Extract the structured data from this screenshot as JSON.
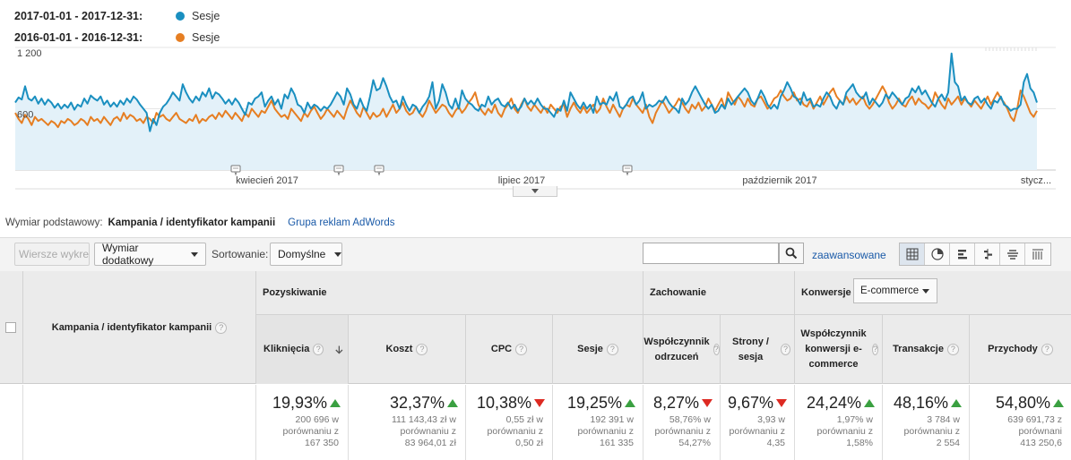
{
  "legend": [
    {
      "range": "2017-01-01 - 2017-12-31:",
      "name": "Sesje",
      "color": "#1a8fc0"
    },
    {
      "range": "2016-01-01 - 2016-12-31:",
      "name": "Sesje",
      "color": "#e67e22"
    }
  ],
  "chart_data": {
    "type": "line",
    "y_ticks": [
      "1 200",
      "600"
    ],
    "ylim": [
      0,
      1200
    ],
    "x_labels": [
      "kwiecień 2017",
      "lipiec 2017",
      "październik 2017",
      "stycz..."
    ],
    "grid": true,
    "legend_position": "top-left",
    "series": [
      {
        "name": "Sesje",
        "color": "#1a8fc0",
        "fill": "#e3f1f9",
        "values": [
          660,
          710,
          690,
          820,
          700,
          680,
          720,
          650,
          700,
          640,
          690,
          660,
          610,
          650,
          600,
          640,
          610,
          660,
          590,
          640,
          620,
          700,
          650,
          730,
          700,
          680,
          720,
          640,
          680,
          620,
          660,
          620,
          680,
          640,
          700,
          660,
          720,
          690,
          640,
          600,
          560,
          380,
          500,
          440,
          560,
          620,
          650,
          700,
          760,
          720,
          680,
          840,
          760,
          700,
          660,
          720,
          680,
          760,
          720,
          800,
          700,
          760,
          740,
          700,
          650,
          690,
          640,
          700,
          660,
          600,
          540,
          660,
          640,
          700,
          720,
          760,
          620,
          680,
          720,
          640,
          690,
          600,
          740,
          700,
          800,
          740,
          640,
          620,
          560,
          660,
          600,
          640,
          620,
          580,
          620,
          600,
          640,
          700,
          760,
          720,
          640,
          800,
          740,
          640,
          600,
          700,
          620,
          580,
          720,
          880,
          780,
          800,
          900,
          820,
          720,
          660,
          680,
          600,
          720,
          640,
          580,
          640,
          620,
          560,
          620,
          660,
          720,
          860,
          600,
          680,
          840,
          760,
          640,
          600,
          700,
          600,
          780,
          700,
          660,
          640,
          600,
          580,
          640,
          620,
          720,
          640,
          680,
          700,
          640,
          620,
          660,
          600,
          640,
          580,
          620,
          700,
          640,
          680,
          640,
          700,
          640,
          600,
          600,
          560,
          520,
          600,
          580,
          680,
          580,
          760,
          700,
          640,
          600,
          660,
          600,
          640,
          560,
          720,
          640,
          660,
          640,
          720,
          680,
          760,
          620,
          600,
          640,
          700,
          720,
          640,
          680,
          760,
          600,
          640,
          620,
          640,
          680,
          660,
          720,
          660,
          620,
          600,
          560,
          700,
          640,
          680,
          760,
          820,
          760,
          700,
          640,
          600,
          640,
          560,
          580,
          640,
          600,
          700,
          640,
          680,
          720,
          760,
          800,
          760,
          680,
          640,
          700,
          780,
          720,
          640,
          600,
          640,
          600,
          720,
          780,
          860,
          800,
          720,
          700,
          640,
          760,
          680,
          700,
          620,
          640,
          620,
          700,
          760,
          720,
          640,
          600,
          680,
          640,
          760,
          800,
          840,
          760,
          720,
          700,
          760,
          640,
          700,
          660,
          620,
          660,
          740,
          700,
          760,
          720,
          680,
          640,
          700,
          720,
          800,
          760,
          820,
          740,
          780,
          720,
          660,
          620,
          700,
          740,
          680,
          760,
          1140,
          860,
          820,
          680,
          720,
          660,
          640,
          700,
          720,
          660,
          700,
          640,
          600,
          680,
          660,
          720,
          640,
          620,
          580,
          600,
          600,
          640,
          860,
          940,
          800,
          760,
          660
        ]
      },
      {
        "name": "Sesje",
        "color": "#e67e22",
        "values": [
          560,
          500,
          460,
          540,
          500,
          440,
          520,
          480,
          500,
          470,
          440,
          480,
          460,
          420,
          480,
          460,
          500,
          480,
          440,
          460,
          500,
          480,
          440,
          520,
          480,
          500,
          460,
          520,
          480,
          440,
          500,
          520,
          480,
          560,
          500,
          540,
          520,
          480,
          500,
          460,
          520,
          500,
          460,
          560,
          520,
          540,
          500,
          480,
          520,
          560,
          500,
          480,
          460,
          500,
          480,
          540,
          460,
          500,
          480,
          520,
          540,
          500,
          560,
          520,
          580,
          540,
          500,
          560,
          520,
          480,
          560,
          520,
          600,
          560,
          520,
          580,
          560,
          620,
          680,
          600,
          560,
          520,
          540,
          500,
          600,
          560,
          520,
          480,
          560,
          520,
          580,
          620,
          560,
          500,
          540,
          600,
          560,
          520,
          580,
          540,
          500,
          600,
          680,
          620,
          560,
          520,
          620,
          560,
          500,
          560,
          520,
          540,
          600,
          520,
          580,
          640,
          560,
          600,
          660,
          580,
          540,
          560,
          620,
          560,
          520,
          580,
          680,
          620,
          560,
          600,
          640,
          620,
          560,
          520,
          580,
          620,
          560,
          600,
          660,
          700,
          760,
          640,
          580,
          540,
          600,
          560,
          640,
          560,
          520,
          600,
          640,
          700,
          600,
          560,
          640,
          700,
          620,
          580,
          640,
          600,
          560,
          620,
          560,
          640,
          600,
          560,
          620,
          640,
          520,
          600,
          660,
          600,
          560,
          620,
          560,
          600,
          640,
          560,
          600,
          700,
          620,
          560,
          640,
          580,
          520,
          600,
          640,
          620,
          700,
          640,
          600,
          560,
          640,
          520,
          460,
          560,
          620,
          680,
          620,
          560,
          600,
          640,
          700,
          660,
          600,
          560,
          640,
          600,
          660,
          580,
          620,
          700,
          640,
          580,
          640,
          700,
          600,
          760,
          700,
          640,
          720,
          680,
          620,
          700,
          640,
          620,
          700,
          720,
          660,
          600,
          640,
          700,
          720,
          780,
          720,
          680,
          700,
          760,
          680,
          700,
          640,
          620,
          680,
          600,
          660,
          720,
          640,
          700,
          760,
          800,
          720,
          680,
          640,
          720,
          660,
          700,
          640,
          680,
          720,
          640,
          600,
          640,
          700,
          760,
          820,
          760,
          660,
          600,
          640,
          700,
          640,
          620,
          680,
          720,
          640,
          700,
          660,
          640,
          600,
          640,
          760,
          700,
          640,
          600,
          700,
          640,
          680,
          720,
          640,
          700,
          660,
          620,
          680,
          640,
          600,
          660,
          720,
          640,
          700,
          760,
          700,
          660,
          600,
          520,
          480,
          600,
          780,
          720,
          640,
          560,
          520,
          580
        ]
      }
    ]
  },
  "expander_icon": "caret-down-icon",
  "dimension": {
    "label": "Wymiar podstawowy:",
    "active": "Kampania / identyfikator kampanii",
    "link": "Grupa reklam AdWords"
  },
  "toolbar": {
    "rows_btn": "Wiersze wykresu",
    "secondary_dim": "Wymiar dodatkowy",
    "sort_label": "Sortowanie:",
    "sort_value": "Domyślne",
    "search_value": "",
    "advanced": "zaawansowane"
  },
  "table": {
    "dim_header": "Kampania / identyfikator kampanii",
    "groups": {
      "acquisition": "Pozyskiwanie",
      "behavior": "Zachowanie",
      "conversions": "Konwersje",
      "conversions_select": "E-commerce"
    },
    "columns": [
      {
        "label": "Kliknięcia",
        "value": "19,93%",
        "trend": "up",
        "sub1": "200 696 w",
        "sub2": "porównaniu z",
        "sub3": "167 350"
      },
      {
        "label": "Koszt",
        "value": "32,37%",
        "trend": "up",
        "sub1": "111 143,43 zł w",
        "sub2": "porównaniu z",
        "sub3": "83 964,01 zł"
      },
      {
        "label": "CPC",
        "value": "10,38%",
        "trend": "down",
        "sub1": "0,55 zł w",
        "sub2": "porównaniu z",
        "sub3": "0,50 zł"
      },
      {
        "label": "Sesje",
        "value": "19,25%",
        "trend": "up",
        "sub1": "192 391 w",
        "sub2": "porównaniu z",
        "sub3": "161 335"
      },
      {
        "label": "Współczynnik odrzuceń",
        "value": "8,27%",
        "trend": "down",
        "sub1": "58,76% w",
        "sub2": "porównaniu z",
        "sub3": "54,27%"
      },
      {
        "label": "Strony / sesja",
        "value": "9,67%",
        "trend": "down",
        "sub1": "3,93 w",
        "sub2": "porównaniu z",
        "sub3": "4,35"
      },
      {
        "label": "Współczynnik konwersji e-commerce",
        "value": "24,24%",
        "trend": "up",
        "sub1": "1,97% w",
        "sub2": "porównaniu z",
        "sub3": "1,58%"
      },
      {
        "label": "Transakcje",
        "value": "48,16%",
        "trend": "up",
        "sub1": "3 784 w",
        "sub2": "porównaniu z",
        "sub3": "2 554"
      },
      {
        "label": "Przychody",
        "value": "54,80%",
        "trend": "up",
        "sub1": "639 691,73 z",
        "sub2": "porównani",
        "sub3": "413 250,6"
      }
    ]
  }
}
